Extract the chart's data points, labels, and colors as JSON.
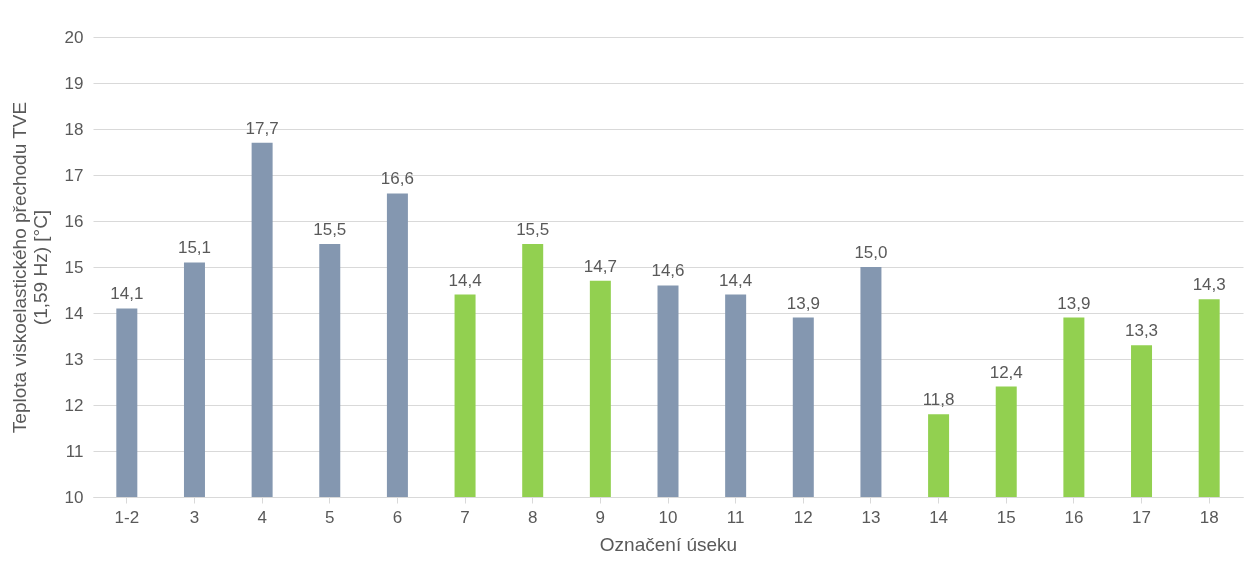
{
  "chart_data": {
    "type": "bar",
    "xlabel": "Označení úseku",
    "ylabel": "Teplota viskoelastického přechodu TVE (1,59 Hz) [°C]",
    "categories": [
      "1-2",
      "3",
      "4",
      "5",
      "6",
      "7",
      "8",
      "9",
      "10",
      "11",
      "12",
      "13",
      "14",
      "15",
      "16",
      "17",
      "18"
    ],
    "values": [
      14.1,
      15.1,
      17.7,
      15.5,
      16.6,
      14.4,
      15.5,
      14.7,
      14.6,
      14.4,
      13.9,
      15.0,
      11.8,
      12.4,
      13.9,
      13.3,
      14.3
    ],
    "value_labels": [
      "14,1",
      "15,1",
      "17,7",
      "15,5",
      "16,6",
      "14,4",
      "15,5",
      "14,7",
      "14,6",
      "14,4",
      "13,9",
      "15,0",
      "11,8",
      "12,4",
      "13,9",
      "13,3",
      "14,3"
    ],
    "colors": [
      "#8497b0",
      "#8497b0",
      "#8497b0",
      "#8497b0",
      "#8497b0",
      "#92d050",
      "#92d050",
      "#92d050",
      "#8497b0",
      "#8497b0",
      "#8497b0",
      "#8497b0",
      "#92d050",
      "#92d050",
      "#92d050",
      "#92d050",
      "#92d050"
    ],
    "ylim": [
      10,
      20
    ],
    "yticks": [
      10,
      11,
      12,
      13,
      14,
      15,
      16,
      17,
      18,
      19,
      20
    ],
    "grid": "y"
  }
}
